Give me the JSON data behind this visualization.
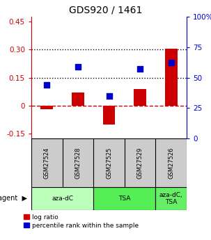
{
  "title": "GDS920 / 1461",
  "samples": [
    "GSM27524",
    "GSM27528",
    "GSM27525",
    "GSM27529",
    "GSM27526"
  ],
  "log_ratios": [
    -0.02,
    0.07,
    -0.1,
    0.09,
    0.305
  ],
  "percentile_ranks": [
    44,
    59,
    35,
    57,
    62.5
  ],
  "ylim_left": [
    -0.175,
    0.475
  ],
  "ylim_right": [
    0,
    100
  ],
  "yticks_left": [
    -0.15,
    0.0,
    0.15,
    0.3,
    0.45
  ],
  "yticks_right": [
    0,
    25,
    50,
    75,
    100
  ],
  "ytick_labels_left": [
    "-0.15",
    "0",
    "0.15",
    "0.30",
    "0.45"
  ],
  "ytick_labels_right": [
    "0",
    "25",
    "50",
    "75",
    "100%"
  ],
  "hlines": [
    0.15,
    0.3
  ],
  "agent_groups": [
    {
      "label": "aza-dC",
      "start": 0,
      "end": 2,
      "color": "#bbffbb"
    },
    {
      "label": "TSA",
      "start": 2,
      "end": 4,
      "color": "#55ee55"
    },
    {
      "label": "aza-dC,\nTSA",
      "start": 4,
      "end": 5,
      "color": "#66ee66"
    }
  ],
  "bar_color": "#cc0000",
  "dot_color": "#0000cc",
  "bar_width": 0.4,
  "dot_size": 40,
  "background_color": "#ffffff",
  "plot_bg": "#ffffff",
  "legend_labels": [
    "log ratio",
    "percentile rank within the sample"
  ],
  "left_axis_color": "#cc0000",
  "right_axis_color": "#0000cc",
  "zero_line_color": "#cc0000",
  "zero_line_style": "--",
  "sample_box_color": "#cccccc",
  "agent_label": "agent"
}
